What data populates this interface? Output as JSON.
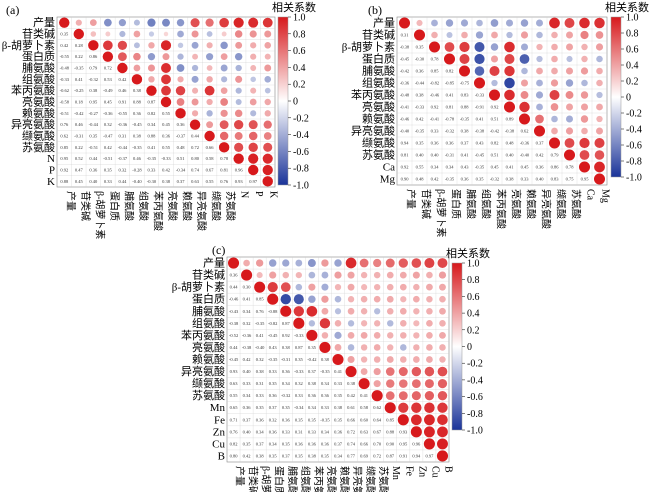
{
  "chart_data": [
    {
      "type": "heatmap",
      "panel_label": "(a)",
      "variables": [
        "产量",
        "苷类碱",
        "β-胡萝卜素",
        "蛋白质",
        "脯氨酸",
        "组氨酸",
        "苯丙氨酸",
        "亮氨酸",
        "赖氨酸",
        "异亮氨酸",
        "缬氨酸",
        "苏氨酸",
        "N",
        "P",
        "K"
      ],
      "colorbar": {
        "title": "相关系数",
        "ticks": [
          "1.0",
          "0.8",
          "0.6",
          "0.4",
          "0.2",
          "0",
          "-0.2",
          "-0.4",
          "-0.6",
          "-0.8",
          "-1.0"
        ],
        "range": [
          -1,
          1
        ]
      },
      "values": [
        [
          1,
          0.35,
          0.42,
          -0.55,
          -0.48,
          -0.33,
          -0.62,
          -0.58,
          -0.51,
          0.76,
          0.62,
          0.85,
          0.95,
          0.92,
          0.88
        ],
        [
          0.35,
          1,
          0.28,
          0.22,
          -0.35,
          0.41,
          -0.25,
          0.18,
          -0.42,
          0.46,
          -0.31,
          0.22,
          0.52,
          0.47,
          0.45
        ],
        [
          0.42,
          0.28,
          1,
          0.86,
          0.79,
          -0.32,
          0.38,
          0.95,
          -0.27,
          -0.44,
          0.35,
          -0.51,
          0.44,
          0.36,
          0.4
        ],
        [
          -0.55,
          0.22,
          0.86,
          1,
          0.72,
          0.53,
          -0.49,
          0.45,
          -0.36,
          0.32,
          -0.47,
          0.42,
          -0.51,
          0.35,
          0.33
        ],
        [
          -0.48,
          -0.35,
          0.79,
          0.72,
          1,
          0.42,
          0.46,
          0.91,
          -0.55,
          -0.36,
          0.31,
          -0.44,
          -0.37,
          0.32,
          0.44
        ],
        [
          -0.33,
          0.41,
          -0.32,
          0.53,
          0.42,
          1,
          0.38,
          0.88,
          0.36,
          -0.45,
          0.38,
          -0.35,
          0.46,
          -0.28,
          -0.4
        ],
        [
          -0.62,
          -0.25,
          0.38,
          -0.49,
          0.46,
          0.38,
          1,
          0.87,
          0.82,
          0.34,
          0.88,
          0.41,
          -0.35,
          0.33,
          -0.3
        ],
        [
          -0.58,
          0.18,
          0.95,
          0.45,
          0.91,
          0.88,
          0.87,
          1,
          0.55,
          0.45,
          0.36,
          0.55,
          -0.33,
          0.42,
          0.38
        ],
        [
          -0.51,
          -0.42,
          -0.27,
          -0.36,
          -0.55,
          0.36,
          0.82,
          0.55,
          1,
          0.36,
          -0.37,
          0.48,
          0.51,
          -0.34,
          0.37
        ],
        [
          0.76,
          0.46,
          -0.44,
          0.32,
          -0.36,
          -0.45,
          0.34,
          0.45,
          0.36,
          1,
          0.44,
          0.72,
          0.8,
          0.74,
          0.63
        ],
        [
          0.62,
          -0.31,
          0.35,
          -0.47,
          0.31,
          0.38,
          0.88,
          0.36,
          -0.37,
          0.44,
          1,
          0.66,
          0.58,
          0.67,
          0.55
        ],
        [
          0.85,
          0.22,
          -0.51,
          0.42,
          -0.44,
          -0.35,
          0.41,
          0.55,
          0.48,
          0.72,
          0.66,
          1,
          0.78,
          0.81,
          0.76
        ],
        [
          0.95,
          0.52,
          0.44,
          -0.51,
          -0.37,
          0.46,
          -0.35,
          -0.33,
          0.51,
          0.8,
          0.58,
          0.78,
          1,
          0.96,
          0.93
        ],
        [
          0.92,
          0.47,
          0.36,
          0.35,
          0.32,
          -0.28,
          0.33,
          0.42,
          -0.34,
          0.74,
          0.67,
          0.81,
          0.96,
          1,
          0.97
        ],
        [
          0.88,
          0.45,
          0.4,
          0.33,
          0.44,
          -0.4,
          -0.3,
          0.38,
          0.37,
          0.63,
          0.55,
          0.76,
          0.93,
          0.97,
          1
        ]
      ]
    },
    {
      "type": "heatmap",
      "panel_label": "(b)",
      "variables": [
        "产量",
        "苷类碱",
        "β-胡萝卜素",
        "蛋白质",
        "脯氨酸",
        "组氨酸",
        "苯丙氨酸",
        "亮氨酸",
        "赖氨酸",
        "异亮氨酸",
        "缬氨酸",
        "苏氨酸",
        "Ca",
        "Mg"
      ],
      "colorbar": {
        "title": "相关系数",
        "ticks": [
          "1.0",
          "0.8",
          "0.6",
          "0.4",
          "0.2",
          "0",
          "-0.2",
          "-0.4",
          "-0.6",
          "-0.8",
          "-1.0"
        ],
        "range": [
          -1,
          1
        ]
      },
      "values": [
        [
          1,
          0.31,
          -0.38,
          -0.45,
          -0.42,
          -0.36,
          -0.48,
          -0.41,
          -0.46,
          -0.4,
          0.94,
          0.81,
          0.92,
          0.9
        ],
        [
          0.31,
          1,
          0.35,
          -0.3,
          0.36,
          -0.44,
          0.38,
          -0.33,
          0.42,
          -0.35,
          0.35,
          0.4,
          0.55,
          0.48
        ],
        [
          -0.38,
          0.35,
          1,
          0.78,
          0.85,
          -0.82,
          -0.46,
          0.92,
          -0.41,
          0.33,
          0.36,
          0.4,
          0.34,
          0.42
        ],
        [
          -0.45,
          -0.3,
          0.78,
          1,
          0.82,
          -0.85,
          0.41,
          0.81,
          -0.78,
          -0.32,
          0.36,
          -0.31,
          0.34,
          -0.35
        ],
        [
          -0.42,
          0.36,
          0.85,
          0.82,
          1,
          -0.75,
          0.83,
          0.88,
          -0.35,
          0.38,
          0.37,
          0.41,
          0.43,
          0.36
        ],
        [
          -0.36,
          -0.44,
          -0.82,
          -0.85,
          -0.75,
          1,
          -0.33,
          -0.91,
          0.41,
          -0.38,
          0.43,
          -0.45,
          -0.35,
          0.35
        ],
        [
          -0.48,
          0.38,
          -0.46,
          0.41,
          0.83,
          -0.33,
          1,
          0.92,
          0.51,
          -0.42,
          0.82,
          0.51,
          0.45,
          -0.32
        ],
        [
          -0.41,
          -0.33,
          0.92,
          0.81,
          0.88,
          -0.91,
          0.92,
          1,
          0.89,
          -0.38,
          0.48,
          0.4,
          0.41,
          0.38
        ],
        [
          -0.46,
          0.42,
          -0.41,
          -0.78,
          -0.35,
          0.41,
          0.51,
          0.89,
          1,
          0.62,
          -0.36,
          -0.4,
          0.45,
          0.33
        ],
        [
          -0.4,
          -0.35,
          0.33,
          -0.32,
          0.38,
          -0.38,
          -0.42,
          -0.38,
          0.62,
          1,
          0.37,
          0.42,
          0.36,
          0.4
        ],
        [
          0.94,
          0.35,
          0.36,
          0.36,
          0.37,
          0.43,
          0.82,
          0.48,
          -0.36,
          0.37,
          1,
          0.79,
          0.86,
          0.83
        ],
        [
          0.81,
          0.4,
          0.4,
          -0.31,
          0.41,
          -0.45,
          0.51,
          0.4,
          -0.4,
          0.42,
          0.79,
          1,
          0.78,
          0.75
        ],
        [
          0.92,
          0.55,
          0.34,
          0.34,
          0.43,
          -0.35,
          0.45,
          0.41,
          0.45,
          0.36,
          0.86,
          0.78,
          1,
          0.95
        ],
        [
          0.9,
          0.48,
          0.42,
          -0.35,
          0.36,
          0.35,
          -0.32,
          0.38,
          0.33,
          0.4,
          0.83,
          0.75,
          0.95,
          1
        ]
      ]
    },
    {
      "type": "heatmap",
      "panel_label": "(c)",
      "variables": [
        "产量",
        "苷类碱",
        "β-胡萝卜素",
        "蛋白质",
        "脯氨酸",
        "组氨酸",
        "苯丙氨酸",
        "亮氨酸",
        "赖氨酸",
        "异亮氨酸",
        "缬氨酸",
        "苏氨酸",
        "Mn",
        "Fe",
        "Zn",
        "Cu",
        "B"
      ],
      "colorbar": {
        "title": "相关系数",
        "ticks": [
          "1.0",
          "0.8",
          "0.6",
          "0.4",
          "0.2",
          "0",
          "-0.2",
          "-0.4",
          "-0.6",
          "-0.8",
          "-1.0"
        ],
        "range": [
          -1,
          1
        ]
      },
      "values": [
        [
          1,
          0.36,
          0.44,
          -0.46,
          -0.43,
          -0.38,
          -0.52,
          0.44,
          -0.45,
          0.93,
          0.63,
          0.55,
          0.65,
          0.71,
          0.76,
          0.82,
          0.8
        ],
        [
          0.36,
          1,
          0.3,
          0.41,
          0.34,
          0.32,
          -0.36,
          -0.38,
          0.42,
          0.4,
          0.33,
          0.34,
          0.36,
          0.37,
          0.4,
          0.35,
          0.42
        ],
        [
          0.44,
          0.3,
          1,
          0.85,
          0.76,
          -0.35,
          0.41,
          -0.4,
          0.32,
          0.38,
          0.31,
          0.33,
          0.35,
          0.36,
          0.34,
          0.37,
          0.38
        ],
        [
          -0.46,
          0.41,
          0.85,
          1,
          -0.88,
          -0.82,
          -0.45,
          0.43,
          -0.35,
          0.33,
          0.35,
          0.36,
          0.37,
          0.32,
          0.36,
          0.34,
          0.35
        ],
        [
          -0.43,
          0.34,
          0.76,
          -0.88,
          1,
          0.87,
          0.92,
          0.38,
          -0.31,
          0.36,
          0.34,
          -0.32,
          0.35,
          0.36,
          0.33,
          0.35,
          0.37
        ],
        [
          -0.38,
          0.32,
          -0.35,
          -0.82,
          0.87,
          1,
          -0.33,
          0.87,
          0.35,
          -0.33,
          0.32,
          0.33,
          -0.34,
          0.35,
          0.31,
          0.36,
          0.35
        ],
        [
          -0.52,
          -0.36,
          0.41,
          -0.45,
          0.92,
          -0.33,
          1,
          0.35,
          -0.42,
          0.37,
          0.38,
          0.36,
          0.34,
          0.35,
          0.33,
          0.36,
          0.38
        ],
        [
          0.44,
          -0.38,
          -0.4,
          0.43,
          0.38,
          0.87,
          0.35,
          1,
          0.38,
          -0.35,
          0.34,
          0.36,
          0.33,
          -0.35,
          0.34,
          0.36,
          0.35
        ],
        [
          -0.45,
          0.42,
          0.32,
          -0.35,
          -0.31,
          0.35,
          -0.42,
          0.38,
          1,
          0.41,
          0.33,
          0.35,
          0.38,
          0.35,
          0.36,
          0.37,
          0.34
        ],
        [
          0.93,
          0.4,
          0.38,
          0.33,
          0.36,
          -0.33,
          0.37,
          -0.35,
          0.41,
          1,
          0.38,
          0.42,
          0.61,
          0.66,
          0.72,
          0.74,
          0.77
        ],
        [
          0.63,
          0.33,
          0.31,
          0.35,
          0.34,
          0.32,
          0.38,
          0.34,
          0.33,
          0.38,
          1,
          0.41,
          0.58,
          0.6,
          0.63,
          0.66,
          0.69
        ],
        [
          0.55,
          0.34,
          0.33,
          0.36,
          -0.32,
          0.33,
          0.36,
          0.36,
          0.35,
          0.42,
          0.41,
          1,
          0.62,
          0.64,
          0.67,
          0.7,
          0.72
        ],
        [
          0.65,
          0.36,
          0.35,
          0.37,
          0.35,
          -0.34,
          0.34,
          0.33,
          0.38,
          0.61,
          0.58,
          0.62,
          1,
          0.85,
          0.88,
          0.9,
          0.87
        ],
        [
          0.71,
          0.37,
          0.36,
          0.32,
          0.36,
          0.35,
          0.35,
          -0.35,
          0.35,
          0.66,
          0.6,
          0.64,
          0.85,
          1,
          0.93,
          0.95,
          0.91
        ],
        [
          0.76,
          0.4,
          0.34,
          0.36,
          0.33,
          0.31,
          0.33,
          0.34,
          0.36,
          0.72,
          0.63,
          0.67,
          0.88,
          0.93,
          1,
          0.96,
          0.94
        ],
        [
          0.82,
          0.35,
          0.37,
          0.34,
          0.35,
          0.36,
          0.36,
          0.36,
          0.37,
          0.74,
          0.66,
          0.7,
          0.9,
          0.95,
          0.96,
          1,
          0.97
        ],
        [
          0.8,
          0.42,
          0.38,
          0.35,
          0.37,
          0.35,
          0.38,
          0.35,
          0.34,
          0.77,
          0.69,
          0.72,
          0.87,
          0.91,
          0.94,
          0.97,
          1
        ]
      ]
    }
  ],
  "colors": {
    "positive": "#d7191c",
    "neutral": "#ffffff",
    "negative": "#1a3399",
    "grid": "#cccccc"
  }
}
